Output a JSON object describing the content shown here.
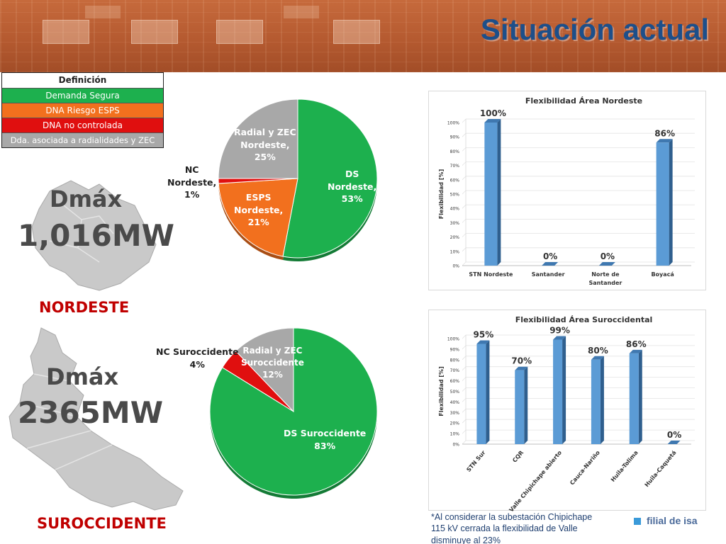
{
  "header": {
    "title": "Situación actual"
  },
  "legend": {
    "header": "Definición",
    "items": [
      "Demanda Segura",
      "DNA Riesgo ESPS",
      "DNA no controlada",
      "Dda. asociada a radialidades y ZEC"
    ]
  },
  "colors": {
    "green": "#1db04e",
    "orange": "#f2701e",
    "red": "#e00f0f",
    "gray": "#a8a8a8",
    "bar": "#5b9bd5",
    "bar_dark": "#2f5f8e",
    "region_label": "#c00000",
    "title_blue": "#1d4f8a"
  },
  "regions": {
    "nordeste": {
      "dmax_label": "Dmáx",
      "dmax_value": "1,016MW",
      "name": "NORDESTE"
    },
    "suroccidente": {
      "dmax_label": "Dmáx",
      "dmax_value": "2365MW",
      "name": "SUROCCIDENTE"
    }
  },
  "chart_data": [
    {
      "type": "pie",
      "slices": [
        {
          "label": "DS Nordeste, 53%",
          "value": 53,
          "color": "#1db04e"
        },
        {
          "label": "ESPS Nordeste, 21%",
          "value": 21,
          "color": "#f2701e"
        },
        {
          "label": "NC Nordeste, 1%",
          "value": 1,
          "color": "#e00f0f"
        },
        {
          "label": "Radial y ZEC Nordeste, 25%",
          "value": 25,
          "color": "#a8a8a8"
        }
      ],
      "label_lines": {
        "ds": [
          "DS",
          "Nordeste,",
          "53%"
        ],
        "esps": [
          "ESPS",
          "Nordeste,",
          "21%"
        ],
        "nc": [
          "NC",
          "Nordeste,",
          "1%"
        ],
        "radial": [
          "Radial y ZEC",
          "Nordeste,",
          "25%"
        ]
      }
    },
    {
      "type": "pie",
      "slices": [
        {
          "label": "DS Suroccidente 83%",
          "value": 83,
          "color": "#1db04e"
        },
        {
          "label": "NC Suroccidente 4%",
          "value": 4,
          "color": "#e00f0f"
        },
        {
          "label": "Radial y ZEC Suroccidente 12%",
          "value": 12,
          "color": "#a8a8a8"
        }
      ],
      "label_lines": {
        "ds": [
          "DS Suroccidente",
          "83%"
        ],
        "nc": [
          "NC Suroccidente",
          "4%"
        ],
        "radial": [
          "Radial y ZEC",
          "Suroccidente",
          "12%"
        ]
      }
    },
    {
      "type": "bar",
      "title": "Flexibilidad Área Nordeste",
      "ylabel": "Flexibilidad [%]",
      "categories": [
        "STN Nordeste",
        "Santander",
        "Norte de Santander",
        "Boyacá"
      ],
      "category_lines": [
        [
          "STN Nordeste"
        ],
        [
          "Santander"
        ],
        [
          "Norte de",
          "Santander"
        ],
        [
          "Boyacá"
        ]
      ],
      "values": [
        100,
        0,
        0,
        86
      ],
      "data_labels": [
        "100%",
        "0%",
        "0%",
        "86%"
      ],
      "ylim": [
        0,
        100
      ],
      "yticks": [
        "0%",
        "10%",
        "20%",
        "30%",
        "40%",
        "50%",
        "60%",
        "70%",
        "80%",
        "90%",
        "100%"
      ],
      "grid": true
    },
    {
      "type": "bar",
      "title": "Flexibilidad Área Suroccidental",
      "ylabel": "Flexibilidad [%]",
      "categories": [
        "STN Sur",
        "CQR",
        "Valle Chipichape abierto",
        "Cauca-Nariño",
        "Huila-Tolima",
        "Huila-Caquetá"
      ],
      "values": [
        95,
        70,
        99,
        80,
        86,
        0
      ],
      "data_labels": [
        "95%",
        "70%",
        "99%",
        "80%",
        "86%",
        "0%"
      ],
      "ylim": [
        0,
        100
      ],
      "yticks": [
        "0%",
        "10%",
        "20%",
        "30%",
        "40%",
        "50%",
        "60%",
        "70%",
        "80%",
        "90%",
        "100%"
      ],
      "grid": true
    }
  ],
  "note": "*Al considerar la subestación Chipichape 115 kV cerrada la flexibilidad de Valle disminuye al 23%",
  "logo": {
    "text": "filial de isa",
    "icon": "square-logo-icon"
  }
}
